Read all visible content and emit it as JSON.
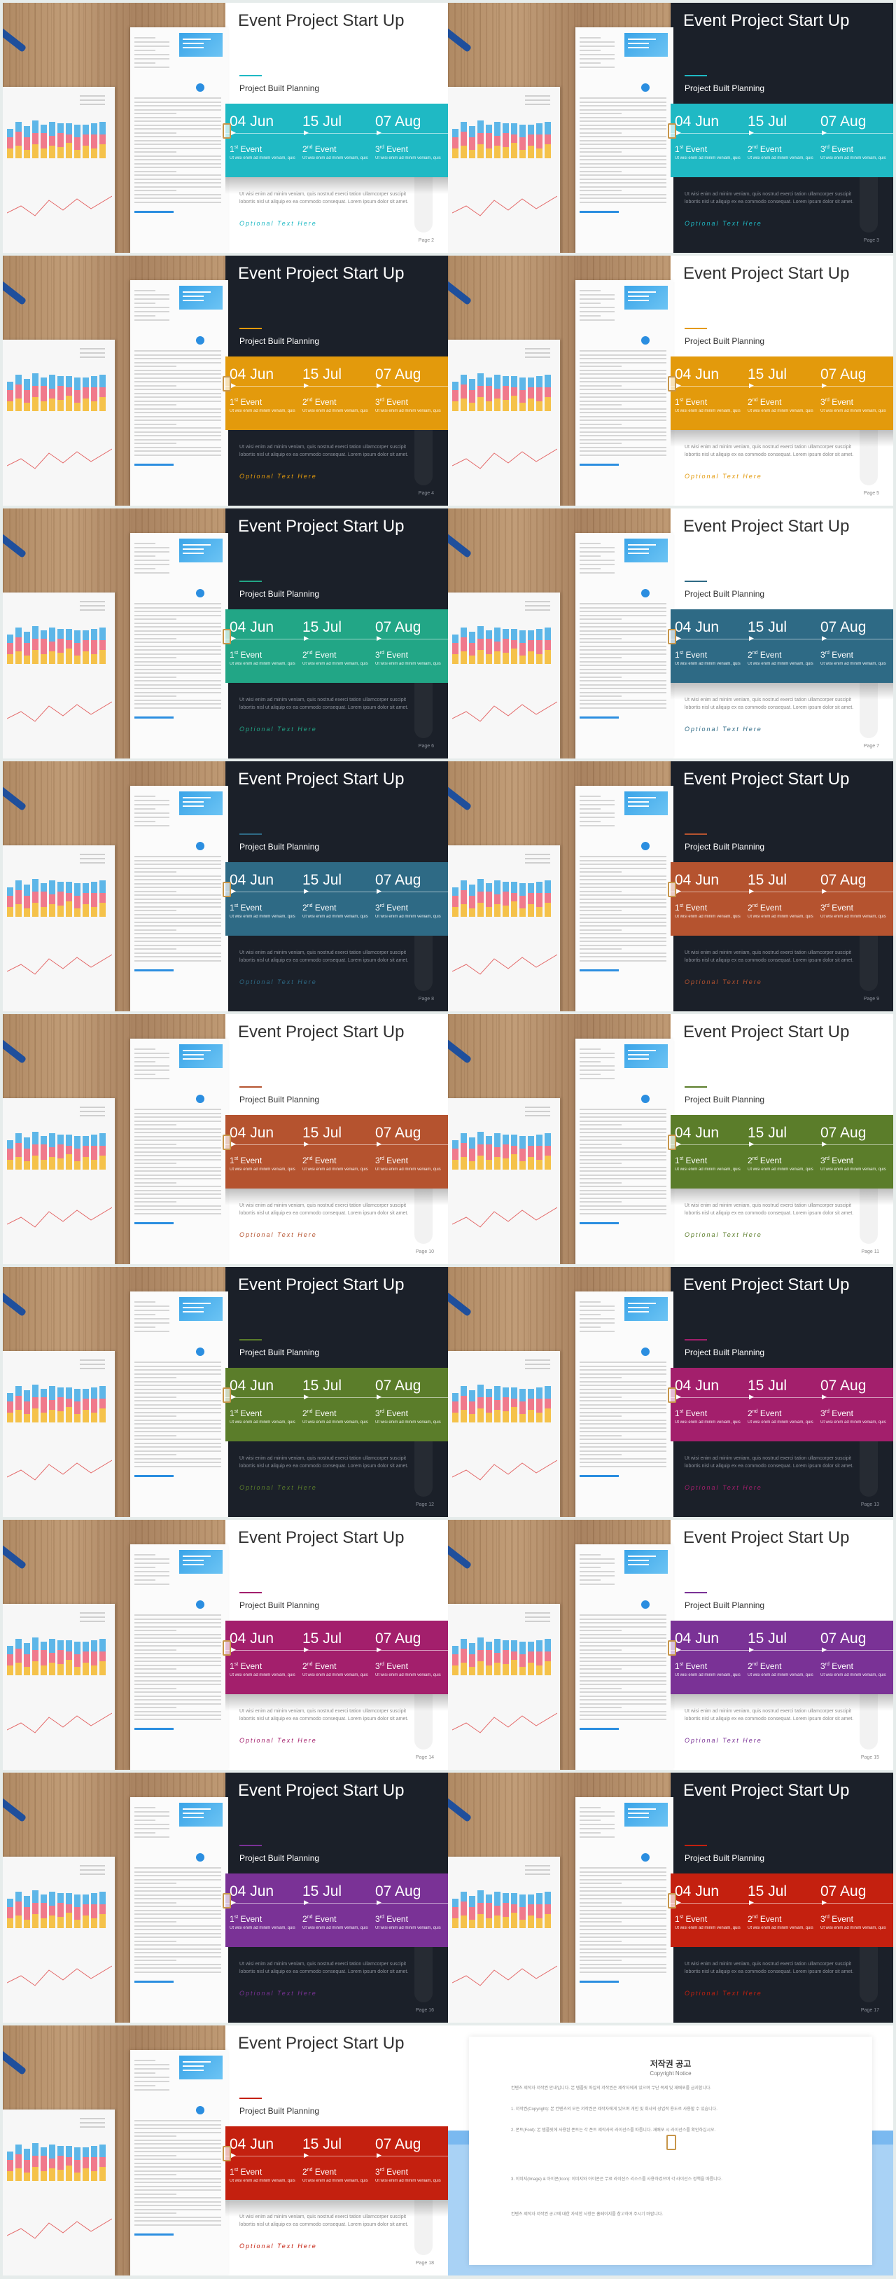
{
  "slide_common": {
    "title": "Event Project Start Up",
    "subtitle": "Project Built Planning",
    "events": [
      {
        "date": "04 Jun",
        "name_num": "1",
        "name_sup": "st",
        "name_text": " Event",
        "desc": "Ut wisi enim ad minim veniam, quis"
      },
      {
        "date": "15 Jul",
        "name_num": "2",
        "name_sup": "nd",
        "name_text": " Event",
        "desc": "Ut wisi enim ad minim veniam, quis"
      },
      {
        "date": "07 Aug",
        "name_num": "3",
        "name_sup": "rd",
        "name_text": " Event",
        "desc": "Ut wisi enim ad minim veniam, quis"
      }
    ],
    "arrow": "▶",
    "lorem": "Ut wisi enim ad minim veniam, quis nostrud exerci tation ullamcorper suscipit lobortis nisl ut aliquip ex ea commodo consequat. Lorem ipsum dolor sit amet.",
    "optional": "Optional Text Here",
    "page_label": "Page"
  },
  "slides": [
    {
      "page": "2",
      "theme": "light",
      "accent": "#1fb9c4"
    },
    {
      "page": "3",
      "theme": "dark",
      "accent": "#1fb9c4"
    },
    {
      "page": "4",
      "theme": "dark",
      "accent": "#e39a0c"
    },
    {
      "page": "5",
      "theme": "light",
      "accent": "#e39a0c"
    },
    {
      "page": "6",
      "theme": "dark",
      "accent": "#22a686"
    },
    {
      "page": "7",
      "theme": "light",
      "accent": "#2e6a85"
    },
    {
      "page": "8",
      "theme": "dark",
      "accent": "#2e6a85"
    },
    {
      "page": "9",
      "theme": "dark",
      "accent": "#b5532f"
    },
    {
      "page": "10",
      "theme": "light",
      "accent": "#b5532f"
    },
    {
      "page": "11",
      "theme": "light",
      "accent": "#5b7d2a"
    },
    {
      "page": "12",
      "theme": "dark",
      "accent": "#5b7d2a"
    },
    {
      "page": "13",
      "theme": "dark",
      "accent": "#a31f6c"
    },
    {
      "page": "14",
      "theme": "light",
      "accent": "#a31f6c"
    },
    {
      "page": "15",
      "theme": "light",
      "accent": "#7a3296"
    },
    {
      "page": "16",
      "theme": "dark",
      "accent": "#7a3296"
    },
    {
      "page": "17",
      "theme": "dark",
      "accent": "#c4200f"
    },
    {
      "page": "18",
      "theme": "light",
      "accent": "#c4200f"
    }
  ],
  "copyright": {
    "title": "저작권 공고",
    "subtitle": "Copyright Notice",
    "paragraphs": [
      "컨텐츠 제작자 저작권 안내입니다. 본 템플릿 파일의 저작권은 제작자에게 있으며 무단 복제 및 재배포를 금지합니다.",
      "1. 저작권(Copyright): 본 컨텐츠의 모든 저작권은 제작자에게 있으며 개인 및 회사의 상업적 용도로 사용할 수 있습니다.",
      "2. 폰트(Font): 본 템플릿에 사용된 폰트는 각 폰트 제작사의 라이선스를 따릅니다. 재배포 시 라이선스를 확인하십시오.",
      "3. 이미지(Image) & 아이콘(Icon): 이미지와 아이콘은 무료 라이선스 리소스를 사용하였으며 각 라이선스 정책을 따릅니다.",
      "컨텐츠 제작자 저작권 공고에 대한 자세한 사항은 홈페이지를 참고하여 주시기 바랍니다."
    ]
  }
}
